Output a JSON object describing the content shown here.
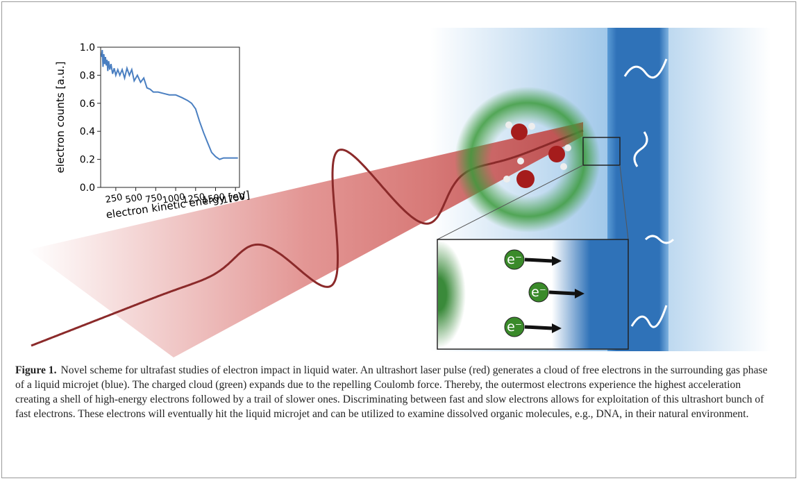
{
  "chart_data": {
    "type": "line",
    "ylabel": "electron counts [a.u.]",
    "xlabel": "electron kinetic energy [eV]",
    "x": [
      70,
      80,
      90,
      100,
      110,
      120,
      130,
      140,
      150,
      160,
      175,
      190,
      210,
      230,
      250,
      275,
      300,
      330,
      360,
      390,
      420,
      450,
      480,
      520,
      560,
      600,
      640,
      680,
      720,
      780,
      850,
      920,
      1000,
      1080,
      1150,
      1200,
      1250,
      1300,
      1350,
      1400,
      1450,
      1500,
      1550,
      1600,
      1650,
      1700,
      1780
    ],
    "values": [
      0.93,
      0.98,
      0.86,
      0.95,
      0.88,
      0.93,
      0.87,
      0.91,
      0.83,
      0.9,
      0.84,
      0.88,
      0.81,
      0.85,
      0.8,
      0.84,
      0.8,
      0.84,
      0.78,
      0.85,
      0.8,
      0.84,
      0.76,
      0.8,
      0.75,
      0.78,
      0.71,
      0.7,
      0.68,
      0.68,
      0.67,
      0.66,
      0.66,
      0.64,
      0.62,
      0.6,
      0.56,
      0.47,
      0.39,
      0.32,
      0.25,
      0.22,
      0.2,
      0.21,
      0.21,
      0.21,
      0.21
    ],
    "color": "#4a7fc1",
    "xlim": [
      60,
      1800
    ],
    "ylim": [
      0,
      1
    ],
    "xticks": [
      250,
      500,
      750,
      1000,
      1250,
      1500,
      1750
    ],
    "yticks": [
      {
        "value": 0,
        "label": "0.0"
      },
      0.2,
      0.4,
      0.6,
      0.8,
      {
        "value": 1,
        "label": "1.0"
      }
    ]
  },
  "illustration": {
    "electron_labels": [
      "e⁻",
      "e⁻",
      "e⁻"
    ]
  },
  "caption": {
    "label": "Figure 1.",
    "text": "Novel scheme for ultrafast studies of electron impact in liquid water. An ultrashort laser pulse (red) generates a cloud of free electrons in the surrounding gas phase of a liquid microjet (blue). The charged cloud (green) expands due to the repelling Coulomb force. Thereby, the outermost electrons experience the highest acceleration creating a shell of high-energy electrons followed by a trail of slower ones. Discriminating between fast and slow electrons allows for exploitation of this ultrashort bunch of fast electrons. These electrons will eventually hit the liquid microjet and can be utilized to examine dissolved organic molecules, e.g., DNA, in their natural environment."
  }
}
